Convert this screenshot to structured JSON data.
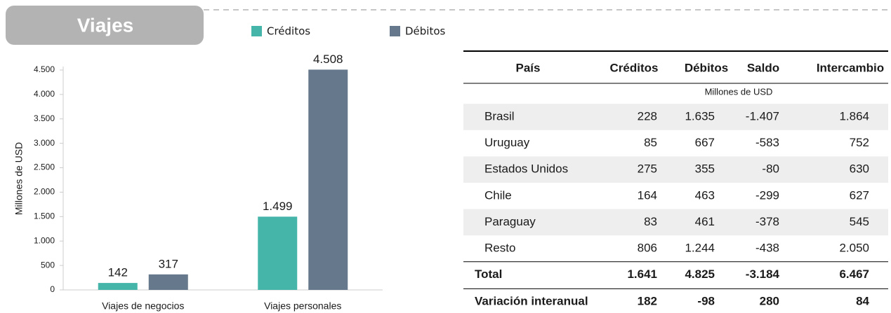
{
  "header": {
    "title": "Viajes"
  },
  "chart_data": {
    "type": "bar",
    "categories": [
      "Viajes de negocios",
      "Viajes personales"
    ],
    "series": [
      {
        "name": "Créditos",
        "color": "#45b5aa",
        "values": [
          142,
          1499
        ],
        "value_labels": [
          "142",
          "1.499"
        ]
      },
      {
        "name": "Débitos",
        "color": "#66798c",
        "values": [
          317,
          4508
        ],
        "value_labels": [
          "317",
          "4.508"
        ]
      }
    ],
    "y_label": "Millones de USD",
    "ylim": [
      0,
      4500
    ],
    "yticks": [
      0,
      500,
      {
        "value": 1000,
        "label": "1.000"
      },
      {
        "value": 1500,
        "label": "1.500"
      },
      {
        "value": 2000,
        "label": "2.000"
      },
      {
        "value": 2500,
        "label": "2.500"
      },
      {
        "value": 3000,
        "label": "3.000"
      },
      {
        "value": 3500,
        "label": "3.500"
      },
      {
        "value": 4000,
        "label": "4.000"
      },
      {
        "value": 4500,
        "label": "4.500"
      }
    ]
  },
  "table": {
    "columns": [
      "País",
      "Créditos",
      "Débitos",
      "Saldo",
      "Intercambio"
    ],
    "unit": "Millones de USD",
    "rows": [
      [
        "Brasil",
        "228",
        "1.635",
        "-1.407",
        "1.864"
      ],
      [
        "Uruguay",
        "85",
        "667",
        "-583",
        "752"
      ],
      [
        "Estados Unidos",
        "275",
        "355",
        "-80",
        "630"
      ],
      [
        "Chile",
        "164",
        "463",
        "-299",
        "627"
      ],
      [
        "Paraguay",
        "83",
        "461",
        "-378",
        "545"
      ],
      [
        "Resto",
        "806",
        "1.244",
        "-438",
        "2.050"
      ]
    ],
    "totals": [
      [
        "Total",
        "1.641",
        "4.825",
        "-3.184",
        "6.467"
      ],
      [
        "Variación interanual",
        "182",
        "-98",
        "280",
        "84"
      ]
    ]
  }
}
